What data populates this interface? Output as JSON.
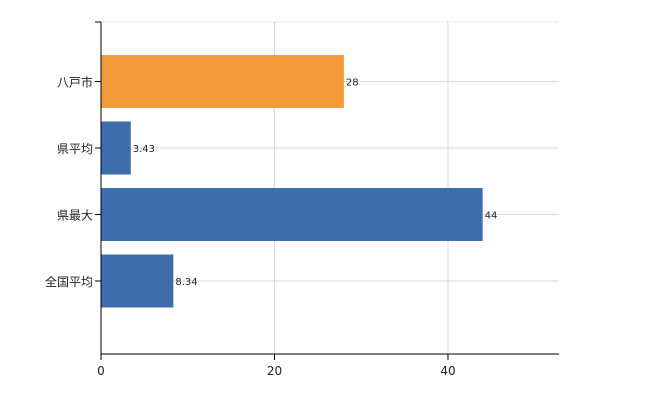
{
  "chart_data": {
    "type": "bar",
    "orientation": "horizontal",
    "title": "",
    "xlabel": "",
    "ylabel": "",
    "categories": [
      "八戸市",
      "県平均",
      "県最大",
      "全国平均"
    ],
    "values": [
      28,
      3.43,
      44,
      8.34
    ],
    "data_labels": [
      "28",
      "3.43",
      "44",
      "8.34"
    ],
    "bar_colors": [
      "#F39A39",
      "#3D6DAA",
      "#3D6DAA",
      "#3D6DAA"
    ],
    "xlim": [
      0,
      52.8
    ],
    "x_ticks": [
      0,
      20,
      40
    ],
    "x_tick_labels": [
      "0",
      "20",
      "40"
    ],
    "grid": true,
    "legend": "none"
  }
}
